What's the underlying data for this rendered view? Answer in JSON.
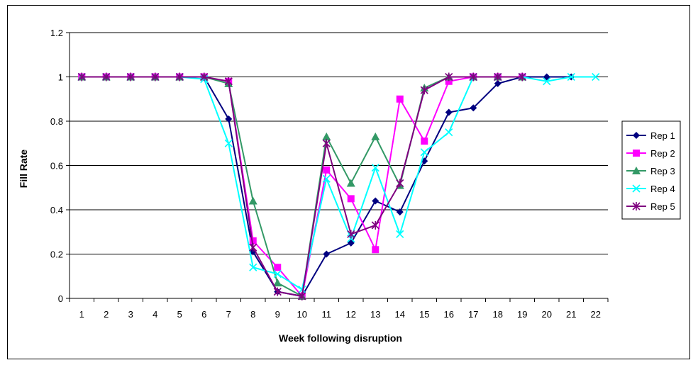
{
  "chart_data": {
    "type": "line",
    "title": "",
    "xlabel": "Week following disruption",
    "ylabel": "Fill Rate",
    "x": [
      1,
      2,
      3,
      4,
      5,
      6,
      7,
      8,
      9,
      10,
      11,
      12,
      13,
      14,
      15,
      16,
      17,
      18,
      19,
      20,
      21,
      22
    ],
    "y_ticks": [
      "0",
      "0.2",
      "0.4",
      "0.6",
      "0.8",
      "1",
      "1.2"
    ],
    "ylim": [
      0,
      1.2
    ],
    "grid": "horizontal",
    "legend_position": "right",
    "series": [
      {
        "name": "Rep 1",
        "color": "#000080",
        "marker": "diamond",
        "values": [
          1,
          1,
          1,
          1,
          1,
          1,
          0.81,
          0.21,
          0.03,
          0.01,
          0.2,
          0.25,
          0.44,
          0.39,
          0.62,
          0.84,
          0.86,
          0.97,
          1,
          1,
          1,
          null
        ]
      },
      {
        "name": "Rep 2",
        "color": "#ff00ff",
        "marker": "square",
        "values": [
          1,
          1,
          1,
          1,
          1,
          1,
          0.98,
          0.26,
          0.14,
          0.01,
          0.58,
          0.45,
          0.22,
          0.9,
          0.71,
          0.98,
          1,
          1,
          1,
          null,
          null,
          null
        ]
      },
      {
        "name": "Rep 3",
        "color": "#339966",
        "marker": "triangle",
        "values": [
          1,
          1,
          1,
          1,
          1,
          1,
          0.97,
          0.44,
          0.07,
          0.01,
          0.73,
          0.52,
          0.73,
          0.51,
          0.95,
          1,
          1,
          1,
          1,
          null,
          null,
          null
        ]
      },
      {
        "name": "Rep 4",
        "color": "#00ffff",
        "marker": "x",
        "values": [
          1,
          1,
          1,
          1,
          1,
          0.99,
          0.7,
          0.14,
          0.11,
          0.04,
          0.54,
          0.27,
          0.59,
          0.29,
          0.66,
          0.75,
          1,
          1,
          1,
          0.98,
          1,
          1
        ]
      },
      {
        "name": "Rep 5",
        "color": "#800080",
        "marker": "asterisk",
        "values": [
          1,
          1,
          1,
          1,
          1,
          1,
          0.98,
          0.23,
          0.03,
          0.01,
          0.7,
          0.29,
          0.33,
          0.52,
          0.94,
          1,
          1,
          1,
          1,
          null,
          null,
          null
        ]
      }
    ]
  }
}
